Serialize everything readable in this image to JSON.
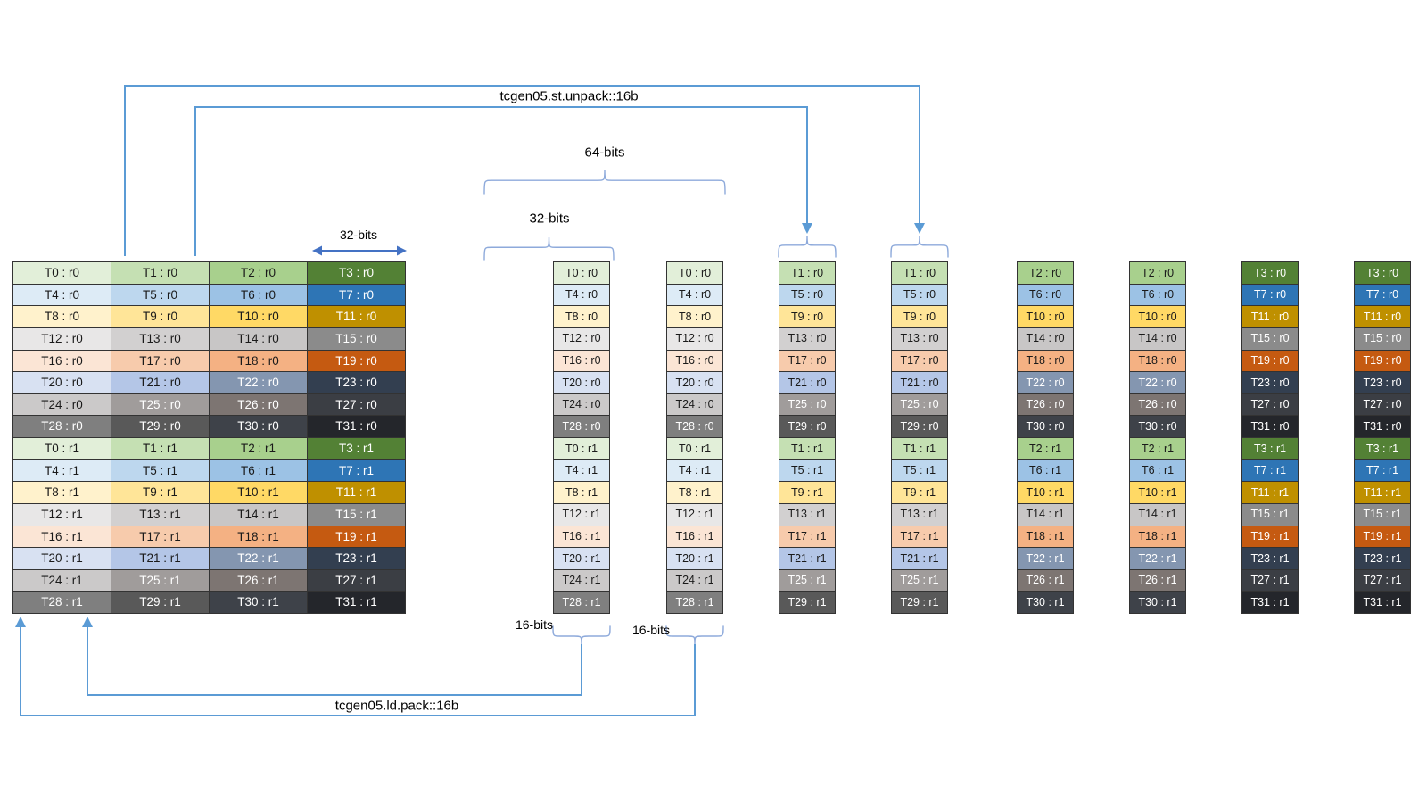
{
  "colors": {
    "line_blue": "#5B9BD5",
    "brace_blue": "#8EAADB",
    "arrow_dark_blue": "#4472C4",
    "cell_border": "#333333",
    "text_dark": "#1a1a1a",
    "text_light": "#FFFFFF"
  },
  "palette": {
    "row_groups": [
      {
        "name": "green",
        "shades": [
          "#E2EFD9",
          "#C5E0B3",
          "#A8D08D",
          "#538135"
        ],
        "text": [
          "d",
          "d",
          "d",
          "l"
        ]
      },
      {
        "name": "blue",
        "shades": [
          "#DDEBF6",
          "#BDD7EE",
          "#9CC2E5",
          "#2E75B5"
        ],
        "text": [
          "d",
          "d",
          "d",
          "l"
        ]
      },
      {
        "name": "yellow",
        "shades": [
          "#FFF2CC",
          "#FFE598",
          "#FFD965",
          "#BF9000"
        ],
        "text": [
          "d",
          "d",
          "d",
          "l"
        ]
      },
      {
        "name": "light-gray",
        "shades": [
          "#E8E7E7",
          "#D2D0D0",
          "#C8C6C6",
          "#8B8B8B"
        ],
        "text": [
          "d",
          "d",
          "d",
          "l"
        ]
      },
      {
        "name": "orange",
        "shades": [
          "#FBE5D5",
          "#F7CBAC",
          "#F4B183",
          "#C55A11"
        ],
        "text": [
          "d",
          "d",
          "d",
          "l"
        ]
      },
      {
        "name": "blue-gray",
        "shades": [
          "#D8E1F2",
          "#B4C6E7",
          "#8496B0",
          "#333F50"
        ],
        "text": [
          "d",
          "d",
          "l",
          "l"
        ]
      },
      {
        "name": "gray",
        "shades": [
          "#CBC9C9",
          "#A09C9B",
          "#7D7572",
          "#3B3E44"
        ],
        "text": [
          "d",
          "l",
          "l",
          "l"
        ]
      },
      {
        "name": "dark-gray",
        "shades": [
          "#7F7F7F",
          "#595959",
          "#3E4249",
          "#24262B"
        ],
        "text": [
          "l",
          "l",
          "l",
          "l"
        ]
      }
    ]
  },
  "annotations": {
    "st_unpack": "tcgen05.st.unpack::16b",
    "ld_pack": "tcgen05.ld.pack::16b",
    "bits_64": "64-bits",
    "bits_32_memory": "32-bits",
    "bits_32_register": "32-bits",
    "bits_16_first": "16-bits",
    "bits_16_second": "16-bits"
  },
  "main_table": {
    "rows": [
      [
        "T0 : r0",
        "T1 : r0",
        "T2 : r0",
        "T3 : r0"
      ],
      [
        "T4 : r0",
        "T5 : r0",
        "T6 : r0",
        "T7 : r0"
      ],
      [
        "T8 : r0",
        "T9 : r0",
        "T10 : r0",
        "T11 : r0"
      ],
      [
        "T12 : r0",
        "T13 : r0",
        "T14 : r0",
        "T15 : r0"
      ],
      [
        "T16 : r0",
        "T17 : r0",
        "T18 : r0",
        "T19 : r0"
      ],
      [
        "T20 : r0",
        "T21 : r0",
        "T22 : r0",
        "T23 : r0"
      ],
      [
        "T24 : r0",
        "T25 : r0",
        "T26 : r0",
        "T27 : r0"
      ],
      [
        "T28 : r0",
        "T29 : r0",
        "T30 : r0",
        "T31 : r0"
      ],
      [
        "T0 : r1",
        "T1 : r1",
        "T2 : r1",
        "T3 : r1"
      ],
      [
        "T4 : r1",
        "T5 : r1",
        "T6 : r1",
        "T7 : r1"
      ],
      [
        "T8 : r1",
        "T9 : r1",
        "T10 : r1",
        "T11 : r1"
      ],
      [
        "T12 : r1",
        "T13 : r1",
        "T14 : r1",
        "T15 : r1"
      ],
      [
        "T16 : r1",
        "T17 : r1",
        "T18 : r1",
        "T19 : r1"
      ],
      [
        "T20 : r1",
        "T21 : r1",
        "T22 : r1",
        "T23 : r1"
      ],
      [
        "T24 : r1",
        "T25 : r1",
        "T26 : r1",
        "T27 : r1"
      ],
      [
        "T28 : r1",
        "T29 : r1",
        "T30 : r1",
        "T31 : r1"
      ]
    ]
  },
  "single_column_tables": [
    {
      "shade_index": 0,
      "cells": [
        "T0 : r0",
        "T4 : r0",
        "T8 : r0",
        "T12 : r0",
        "T16 : r0",
        "T20 : r0",
        "T24 : r0",
        "T28 : r0",
        "T0 : r1",
        "T4 : r1",
        "T8 : r1",
        "T12 : r1",
        "T16 : r1",
        "T20 : r1",
        "T24 : r1",
        "T28 : r1"
      ]
    },
    {
      "shade_index": 0,
      "cells": [
        "T0 : r0",
        "T4 : r0",
        "T8 : r0",
        "T12 : r0",
        "T16 : r0",
        "T20 : r0",
        "T24 : r0",
        "T28 : r0",
        "T0 : r1",
        "T4 : r1",
        "T8 : r1",
        "T12 : r1",
        "T16 : r1",
        "T20 : r1",
        "T24 : r1",
        "T28 : r1"
      ]
    },
    {
      "shade_index": 1,
      "cells": [
        "T1 : r0",
        "T5 : r0",
        "T9 : r0",
        "T13 : r0",
        "T17 : r0",
        "T21 : r0",
        "T25 : r0",
        "T29 : r0",
        "T1 : r1",
        "T5 : r1",
        "T9 : r1",
        "T13 : r1",
        "T17 : r1",
        "T21 : r1",
        "T25 : r1",
        "T29 : r1"
      ]
    },
    {
      "shade_index": 1,
      "cells": [
        "T1 : r0",
        "T5 : r0",
        "T9 : r0",
        "T13 : r0",
        "T17 : r0",
        "T21 : r0",
        "T25 : r0",
        "T29 : r0",
        "T1 : r1",
        "T5 : r1",
        "T9 : r1",
        "T13 : r1",
        "T17 : r1",
        "T21 : r1",
        "T25 : r1",
        "T29 : r1"
      ]
    },
    {
      "shade_index": 2,
      "cells": [
        "T2 : r0",
        "T6 : r0",
        "T10 : r0",
        "T14 : r0",
        "T18 : r0",
        "T22 : r0",
        "T26 : r0",
        "T30 : r0",
        "T2 : r1",
        "T6 : r1",
        "T10 : r1",
        "T14 : r1",
        "T18 : r1",
        "T22 : r1",
        "T26 : r1",
        "T30 : r1"
      ]
    },
    {
      "shade_index": 2,
      "cells": [
        "T2 : r0",
        "T6 : r0",
        "T10 : r0",
        "T14 : r0",
        "T18 : r0",
        "T22 : r0",
        "T26 : r0",
        "T30 : r0",
        "T2 : r1",
        "T6 : r1",
        "T10 : r1",
        "T14 : r1",
        "T18 : r1",
        "T22 : r1",
        "T26 : r1",
        "T30 : r1"
      ]
    },
    {
      "shade_index": 3,
      "cells": [
        "T3 : r0",
        "T7 : r0",
        "T11 : r0",
        "T15 : r0",
        "T19 : r0",
        "T23 : r0",
        "T27 : r0",
        "T31 : r0",
        "T3 : r1",
        "T7 : r1",
        "T11 : r1",
        "T15 : r1",
        "T19 : r1",
        "T23 : r1",
        "T27 : r1",
        "T31 : r1"
      ]
    },
    {
      "shade_index": 3,
      "cells": [
        "T3 : r0",
        "T7 : r0",
        "T11 : r0",
        "T15 : r0",
        "T19 : r0",
        "T23 : r0",
        "T27 : r0",
        "T31 : r0",
        "T3 : r1",
        "T7 : r1",
        "T11 : r1",
        "T15 : r1",
        "T19 : r1",
        "T23 : r1",
        "T27 : r1",
        "T31 : r1"
      ]
    }
  ]
}
